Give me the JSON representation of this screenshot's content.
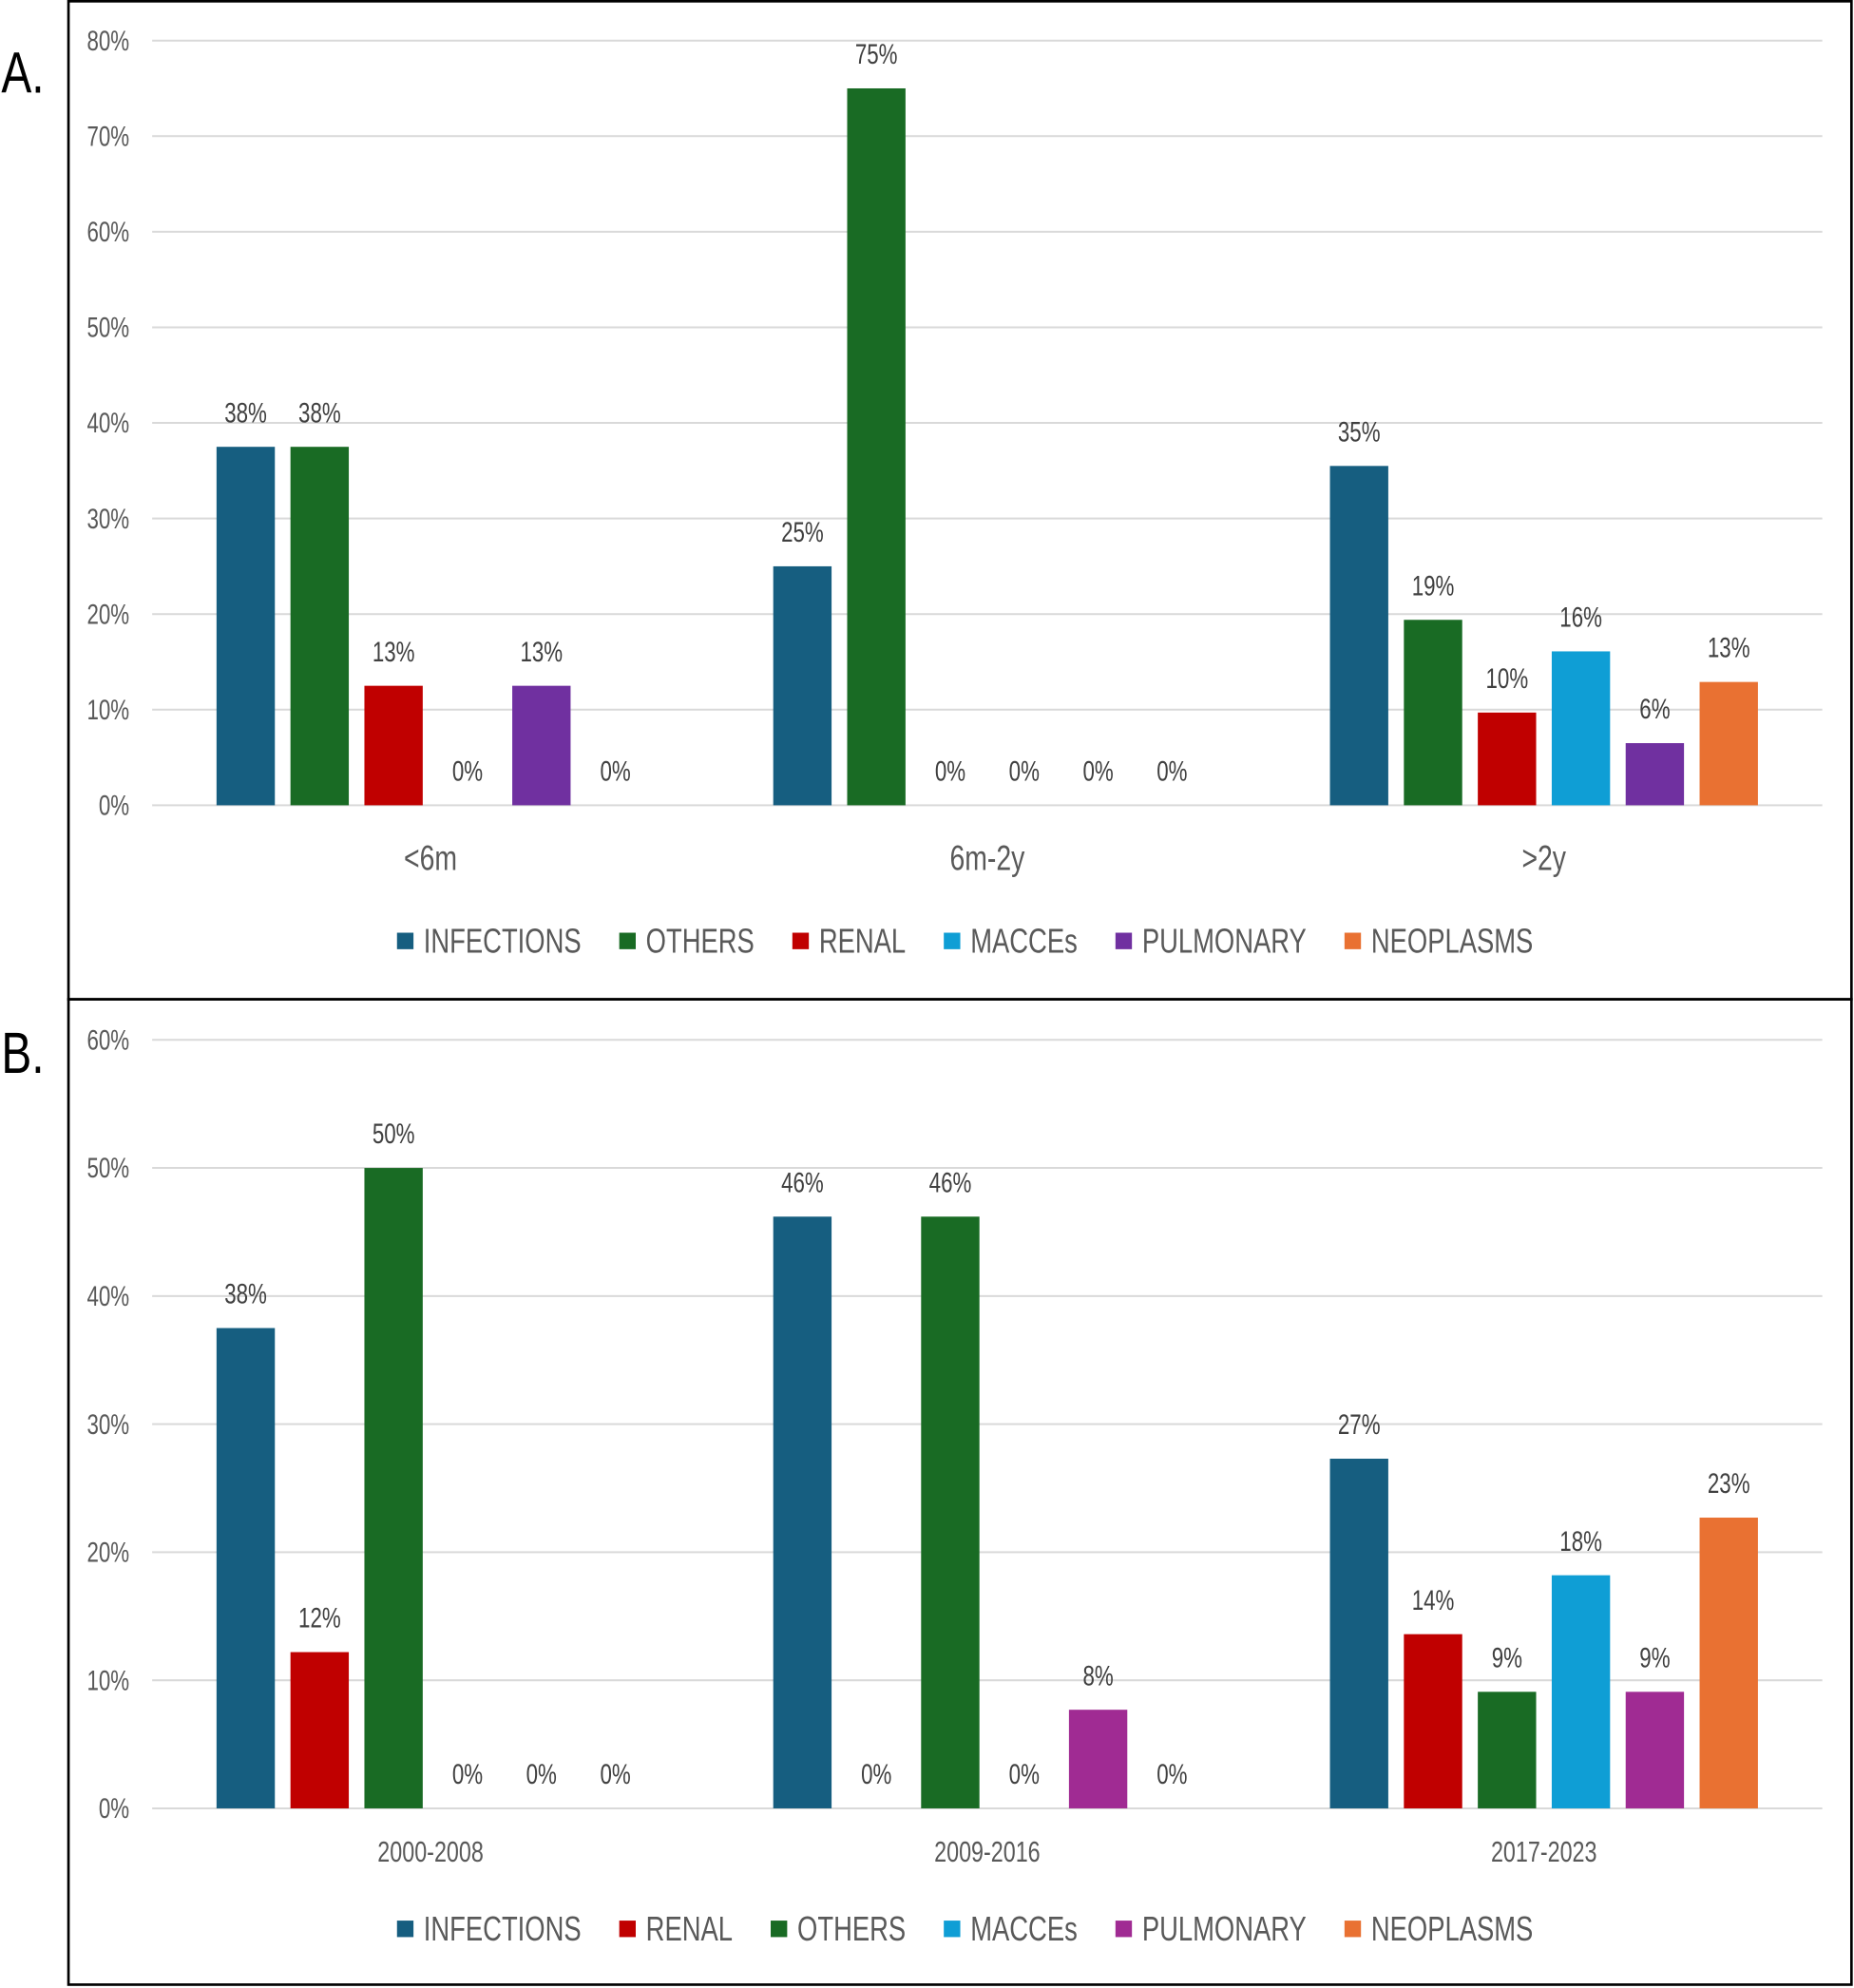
{
  "figure": {
    "background": "#ffffff",
    "grid_color": "#d9d9d9",
    "axis_text_color": "#595959",
    "data_label_color": "#404040",
    "frame_color": "#000000"
  },
  "chart_data": [
    {
      "type": "bar",
      "panel_label": "A.",
      "ylim": [
        0,
        80
      ],
      "y_ticks": [
        0,
        10,
        20,
        30,
        40,
        50,
        60,
        70,
        80
      ],
      "y_tick_labels": [
        "0%",
        "10%",
        "20%",
        "30%",
        "40%",
        "50%",
        "60%",
        "70%",
        "80%"
      ],
      "grid": true,
      "legend_position": "bottom",
      "categories": [
        "<6m",
        "6m-2y",
        ">2y"
      ],
      "series": [
        {
          "name": "INFECTIONS",
          "color": "#165e80",
          "values": [
            37.5,
            25.0,
            35.5
          ],
          "labels": [
            "38%",
            "25%",
            "35%"
          ]
        },
        {
          "name": "OTHERS",
          "color": "#196b24",
          "values": [
            37.5,
            75.0,
            19.4
          ],
          "labels": [
            "38%",
            "75%",
            "19%"
          ]
        },
        {
          "name": "RENAL",
          "color": "#c00000",
          "values": [
            12.5,
            0,
            9.7
          ],
          "labels": [
            "13%",
            "0%",
            "10%"
          ]
        },
        {
          "name": "MACCEs",
          "color": "#0f9ed5",
          "values": [
            0,
            0,
            16.1
          ],
          "labels": [
            "0%",
            "0%",
            "16%"
          ]
        },
        {
          "name": "PULMONARY",
          "color": "#7030a0",
          "values": [
            12.5,
            0,
            6.5
          ],
          "labels": [
            "13%",
            "0%",
            "6%"
          ]
        },
        {
          "name": "NEOPLASMS",
          "color": "#e97132",
          "values": [
            0,
            0,
            12.9
          ],
          "labels": [
            "0%",
            "0%",
            "13%"
          ]
        }
      ]
    },
    {
      "type": "bar",
      "panel_label": "B.",
      "ylim": [
        0,
        60
      ],
      "y_ticks": [
        0,
        10,
        20,
        30,
        40,
        50,
        60
      ],
      "y_tick_labels": [
        "0%",
        "10%",
        "20%",
        "30%",
        "40%",
        "50%",
        "60%"
      ],
      "grid": true,
      "legend_position": "bottom",
      "categories": [
        "2000-2008",
        "2009-2016",
        "2017-2023"
      ],
      "series": [
        {
          "name": "INFECTIONS",
          "color": "#165e80",
          "values": [
            37.5,
            46.2,
            27.3
          ],
          "labels": [
            "38%",
            "46%",
            "27%"
          ]
        },
        {
          "name": "RENAL",
          "color": "#c00000",
          "values": [
            12.2,
            0,
            13.6
          ],
          "labels": [
            "12%",
            "0%",
            "14%"
          ]
        },
        {
          "name": "OTHERS",
          "color": "#196b24",
          "values": [
            50.0,
            46.2,
            9.1
          ],
          "labels": [
            "50%",
            "46%",
            "9%"
          ]
        },
        {
          "name": "MACCEs",
          "color": "#0f9ed5",
          "values": [
            0,
            0,
            18.2
          ],
          "labels": [
            "0%",
            "0%",
            "18%"
          ]
        },
        {
          "name": "PULMONARY",
          "color": "#a02b93",
          "values": [
            0,
            7.7,
            9.1
          ],
          "labels": [
            "0%",
            "8%",
            "9%"
          ]
        },
        {
          "name": "NEOPLASMS",
          "color": "#e97132",
          "values": [
            0,
            0,
            22.7
          ],
          "labels": [
            "0%",
            "0%",
            "23%"
          ]
        }
      ]
    }
  ]
}
